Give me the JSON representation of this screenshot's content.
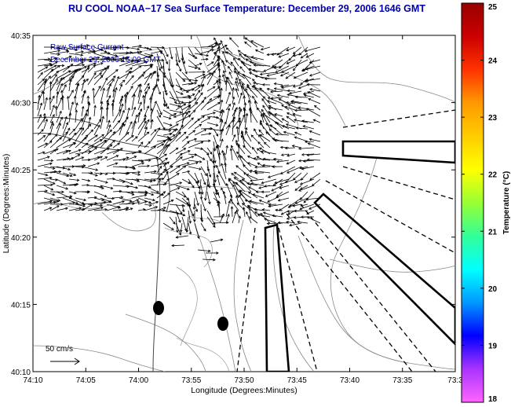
{
  "title": "RU COOL  NOAA−17  Sea Surface Temperature:  December 29, 2006 1646 GMT",
  "current_label": "Raw Surface Current",
  "current_date": "December 29, 2006 15:00 GMT",
  "scale_label": "50 cm/s",
  "map": {
    "x_ticks": [
      "74:10",
      "74:05",
      "74:00",
      "73:55",
      "73:50",
      "73:45",
      "73:40",
      "73:35",
      "73:3"
    ],
    "y_ticks": [
      "40:35",
      "40:30",
      "40:25",
      "40:20",
      "40:15",
      "40:10"
    ],
    "xlabel": "Longitude (Degrees:Minutes)",
    "ylabel": "Latitude (Degrees:Minutes)"
  },
  "colorbar": {
    "label": "Temperature (°C)",
    "ticks": [
      "25",
      "24",
      "23",
      "22",
      "21",
      "20",
      "19",
      "18"
    ],
    "min": 18,
    "max": 25,
    "colors": [
      "#ff66ff",
      "#aa33ff",
      "#0000ff",
      "#0099ff",
      "#00ffff",
      "#33ff99",
      "#99ff33",
      "#ffff00",
      "#ffcc00",
      "#ff9900",
      "#ff3300",
      "#cc0000",
      "#990000"
    ]
  }
}
